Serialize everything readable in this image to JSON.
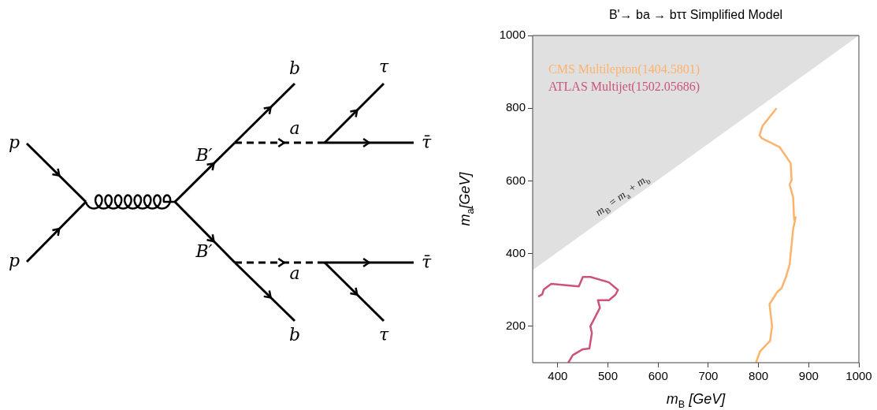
{
  "chart_data": {
    "type": "line",
    "title": "B'→ ba → bττ Simplified Model",
    "xlabel": "m$_{B}$ [GeV]",
    "ylabel": "m$_{a}$[GeV]",
    "xlim": [
      350,
      1000
    ],
    "xticks": [
      400,
      500,
      600,
      700,
      800,
      900,
      1000
    ],
    "ylim": [
      100,
      1000
    ],
    "yticks": [
      200,
      400,
      600,
      800,
      1000
    ],
    "grid": false,
    "legend": "top left",
    "marker": "none",
    "line_style": "solid",
    "series": [
      {
        "type": "area",
        "color": "#e0e0e0",
        "x": [
          350,
          1000
        ],
        "values": [
          355,
          1000
        ]
      },
      {
        "name": "CMS Multilepton(1404.5801)",
        "color": "#fdb36c",
        "x": [
          795,
          803,
          823,
          827,
          822,
          837,
          846,
          855,
          862,
          869,
          874,
          871,
          869,
          862,
          866,
          864,
          842,
          806,
          802,
          808,
          836
        ],
        "values": [
          100,
          131,
          160,
          200,
          261,
          294,
          305,
          337,
          370,
          467,
          500,
          493,
          555,
          590,
          602,
          649,
          693,
          718,
          725,
          751,
          800
        ]
      },
      {
        "name": "ATLAS Multijet(1502.05686)",
        "color": "#cc5577",
        "x": [
          421,
          430,
          450,
          463,
          468,
          465,
          484,
          480,
          502,
          515,
          520,
          502,
          465,
          450,
          442,
          387,
          372,
          369,
          361
        ],
        "values": [
          100,
          121,
          137,
          139,
          182,
          200,
          251,
          272,
          272,
          287,
          300,
          321,
          336,
          336,
          310,
          317,
          301,
          288,
          282
        ]
      }
    ],
    "annotations": [
      "m$_{B}$ = m$_{a}$ + m$_{b}$",
      "p",
      "p",
      "B′",
      "B′",
      "a",
      "a",
      "b",
      "b",
      "τ",
      "τ̄",
      "τ̄",
      "τ"
    ]
  }
}
